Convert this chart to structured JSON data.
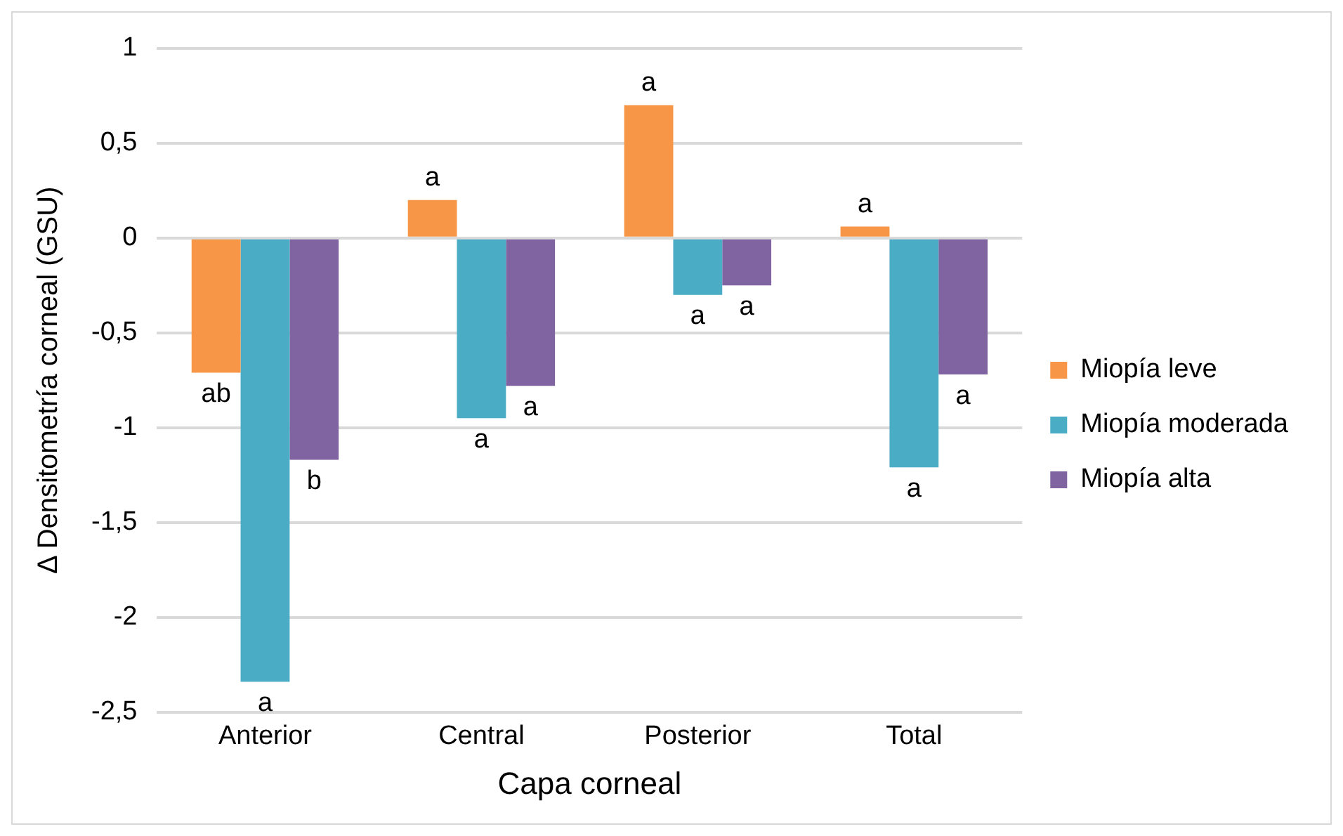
{
  "chart_data": {
    "type": "bar",
    "xlabel": "Capa corneal",
    "ylabel": "Δ Densitometría corneal (GSU)",
    "categories": [
      "Anterior",
      "Central",
      "Posterior",
      "Total"
    ],
    "series": [
      {
        "name": "Miopía leve",
        "color": "#f79646",
        "values": [
          -0.71,
          0.2,
          0.7,
          0.06
        ],
        "value_labels": [
          "ab",
          "a",
          "a",
          "a"
        ]
      },
      {
        "name": "Miopía moderada",
        "color": "#4bacc6",
        "values": [
          -2.34,
          -0.95,
          -0.3,
          -1.21
        ],
        "value_labels": [
          "a",
          "a",
          "a",
          "a"
        ]
      },
      {
        "name": "Miopía alta",
        "color": "#8064a2",
        "values": [
          -1.17,
          -0.78,
          -0.25,
          -0.72
        ],
        "value_labels": [
          "b",
          "a",
          "a",
          "a"
        ]
      }
    ],
    "ylim": [
      -2.5,
      1
    ],
    "yticks": [
      {
        "value": -2.5,
        "label": "-2,5"
      },
      {
        "value": -2,
        "label": "-2"
      },
      {
        "value": -1.5,
        "label": "-1,5"
      },
      {
        "value": -1,
        "label": "-1"
      },
      {
        "value": -0.5,
        "label": "-0,5"
      },
      {
        "value": 0,
        "label": "0"
      },
      {
        "value": 0.5,
        "label": "0,5"
      },
      {
        "value": 1,
        "label": "1"
      }
    ],
    "grid": "y",
    "legend": "right"
  }
}
